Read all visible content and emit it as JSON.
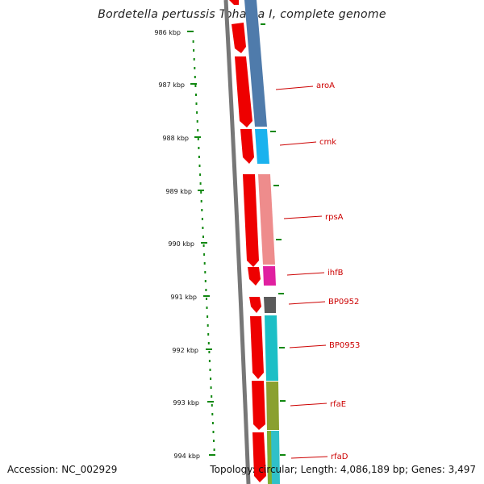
{
  "title": "Bordetella pertussis Tohama I, complete genome",
  "footer": {
    "accession": "Accession: NC_002929",
    "stats": "Topology: circular; Length: 4,086,189 bp; Genes: 3,497"
  },
  "axis": {
    "ticks": [
      "986 kbp",
      "987 kbp",
      "988 kbp",
      "989 kbp",
      "990 kbp",
      "991 kbp",
      "992 kbp",
      "993 kbp",
      "994 kbp"
    ]
  },
  "genes": [
    {
      "name": "aroA"
    },
    {
      "name": "cmk"
    },
    {
      "name": "rpsA"
    },
    {
      "name": "ihfB"
    },
    {
      "name": "BP0952"
    },
    {
      "name": "BP0953"
    },
    {
      "name": "rfaE"
    },
    {
      "name": "rfaD"
    }
  ],
  "colors": {
    "strand_arrow": "#ee0000",
    "backbone": "#777777",
    "ruler": "#118811",
    "label": "#cc0000",
    "aroA": "#4f7bab",
    "cmk": "#1ab2ee",
    "rpsA": "#ee8c8c",
    "ihfB": "#e020a0",
    "BP0952": "#5a5a5a",
    "BP0953": "#1cbfc6",
    "rfaE": "#8aa030",
    "rfaD": "#30c0c8"
  }
}
